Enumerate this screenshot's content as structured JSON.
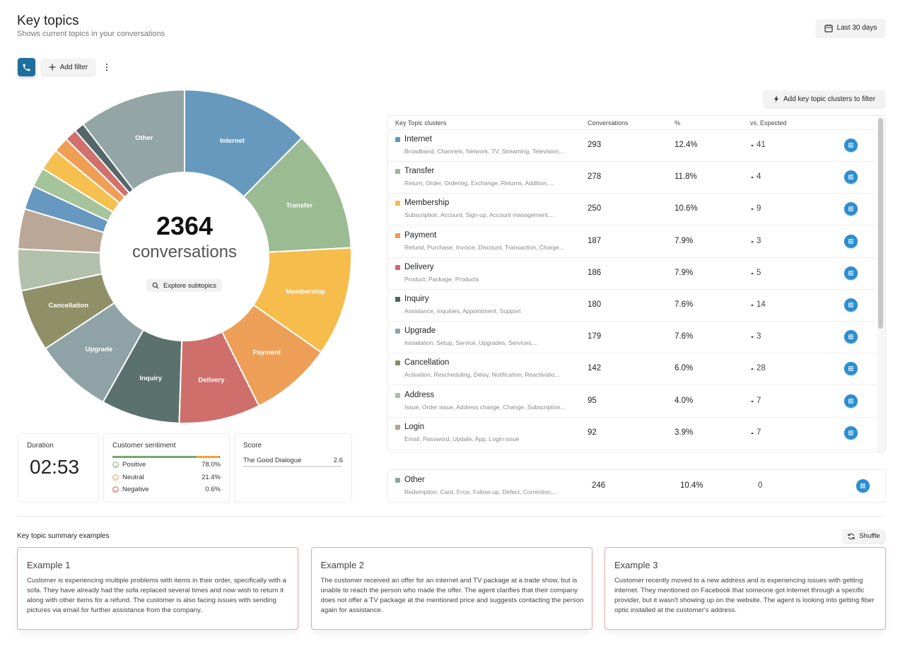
{
  "header": {
    "title": "Key topics",
    "subtitle": "Shows current topics in your conversations",
    "date_range": "Last 30 days"
  },
  "toolbar": {
    "add_filter": "Add filter"
  },
  "chart_data": {
    "type": "pie",
    "center_value": 2364,
    "center_caption": "conversations",
    "action": "Explore subtopics",
    "categories": [
      "Internet",
      "Transfer",
      "Membership",
      "Payment",
      "Delivery",
      "Inquiry",
      "Upgrade",
      "Cancellation",
      null,
      null,
      null,
      null,
      null,
      null,
      null,
      null,
      "Other"
    ],
    "values": [
      293,
      278,
      250,
      187,
      186,
      180,
      179,
      142,
      95,
      92,
      55,
      45,
      50,
      35,
      28,
      23,
      246
    ],
    "colors": [
      "#6699bd",
      "#9bbb93",
      "#f6bc4c",
      "#ee9f57",
      "#cf6f6c",
      "#5a716e",
      "#8fa2a6",
      "#8f8f68",
      "#b2c1ab",
      "#bba795",
      "#6698c0",
      "#a6c49b",
      "#f5c04f",
      "#ef9f55",
      "#d2706d",
      "#54676a",
      "#94a5a5"
    ]
  },
  "table": {
    "add_clusters": "Add key topic clusters to filter",
    "columns": [
      "Key Topic clusters",
      "Conversations",
      "%",
      "vs. Expected"
    ],
    "rows": [
      {
        "name": "Internet",
        "color": "#5b97bd",
        "topics": "Broadband, Channels, Network, TV, Streaming, Television,...",
        "conversations": 293,
        "percent": "12.4%",
        "vs": 41,
        "trend": "down"
      },
      {
        "name": "Transfer",
        "color": "#98bb91",
        "topics": "Return, Order, Ordering, Exchange, Returns, Addition,...",
        "conversations": 278,
        "percent": "11.8%",
        "vs": 4,
        "trend": "up"
      },
      {
        "name": "Membership",
        "color": "#f6bb4a",
        "topics": "Subscription, Account, Sign-up, Account management,...",
        "conversations": 250,
        "percent": "10.6%",
        "vs": 9,
        "trend": "down"
      },
      {
        "name": "Payment",
        "color": "#ef9a52",
        "topics": "Refund, Purchase, Invoice, Discount, Transaction, Charge...",
        "conversations": 187,
        "percent": "7.9%",
        "vs": 3,
        "trend": "up"
      },
      {
        "name": "Delivery",
        "color": "#d1686a",
        "topics": "Product, Package, Products",
        "conversations": 186,
        "percent": "7.9%",
        "vs": 5,
        "trend": "up"
      },
      {
        "name": "Inquiry",
        "color": "#4e6560",
        "topics": "Assistance, Inquiries, Appointment, Support",
        "conversations": 180,
        "percent": "7.6%",
        "vs": 14,
        "trend": "down"
      },
      {
        "name": "Upgrade",
        "color": "#8fa3a8",
        "topics": "Installation, Setup, Service, Upgrades, Services,...",
        "conversations": 179,
        "percent": "7.6%",
        "vs": 3,
        "trend": "down"
      },
      {
        "name": "Cancellation",
        "color": "#8e8e63",
        "topics": "Activation, Rescheduling, Delay, Notification, Reactivatio...",
        "conversations": 142,
        "percent": "6.0%",
        "vs": 28,
        "trend": "up"
      },
      {
        "name": "Address",
        "color": "#a7c3a0",
        "topics": "Issue, Order issue, Address change, Change, Subscription...",
        "conversations": 95,
        "percent": "4.0%",
        "vs": 7,
        "trend": "down"
      },
      {
        "name": "Login",
        "color": "#b9a08f",
        "topics": "Email, Password, Update, App, Login issue",
        "conversations": 92,
        "percent": "3.9%",
        "vs": 7,
        "trend": "up"
      }
    ],
    "other": {
      "name": "Other",
      "color": "#8fa3a3",
      "topics": "Redemption, Card, Error, Follow-up, Defect, Correction,...",
      "conversations": 246,
      "percent": "10.4%",
      "vs": 0
    }
  },
  "stats": {
    "duration": {
      "label": "Duration",
      "value": "02:53"
    },
    "sentiment": {
      "label": "Customer sentiment",
      "items": [
        {
          "name": "Positive",
          "value": 78.0,
          "value_label": "78.0%",
          "color": "#7aa56f"
        },
        {
          "name": "Neutral",
          "value": 21.4,
          "value_label": "21.4%",
          "color": "#f1a33a"
        },
        {
          "name": "Negative",
          "value": 0.6,
          "value_label": "0.6%",
          "color": "#d9534f"
        }
      ]
    },
    "score": {
      "label": "Score",
      "name": "The Good Dialogue",
      "value": 2.6
    }
  },
  "summary": {
    "title": "Key topic summary examples",
    "shuffle": "Shuffle",
    "examples": [
      {
        "title": "Example 1",
        "text": "Customer is experiencing multiple problems with items in their order, specifically with a sofa. They have already had the sofa replaced several times and now wish to return it along with other items for a refund. The customer is also facing issues with sending pictures via email for further assistance from the company."
      },
      {
        "title": "Example 2",
        "text": "The customer received an offer for an internet and TV package at a trade show, but is unable to reach the person who made the offer. The agent clarifies that their company does not offer a TV package at the mentioned price and suggests contacting the person again for assistance."
      },
      {
        "title": "Example 3",
        "text": "Customer recently moved to a new address and is experiencing issues with getting internet. They mentioned on Facebook that someone got internet through a specific provider, but it wasn't showing up on the website. The agent is looking into getting fiber optic installed at the customer's address."
      }
    ]
  }
}
